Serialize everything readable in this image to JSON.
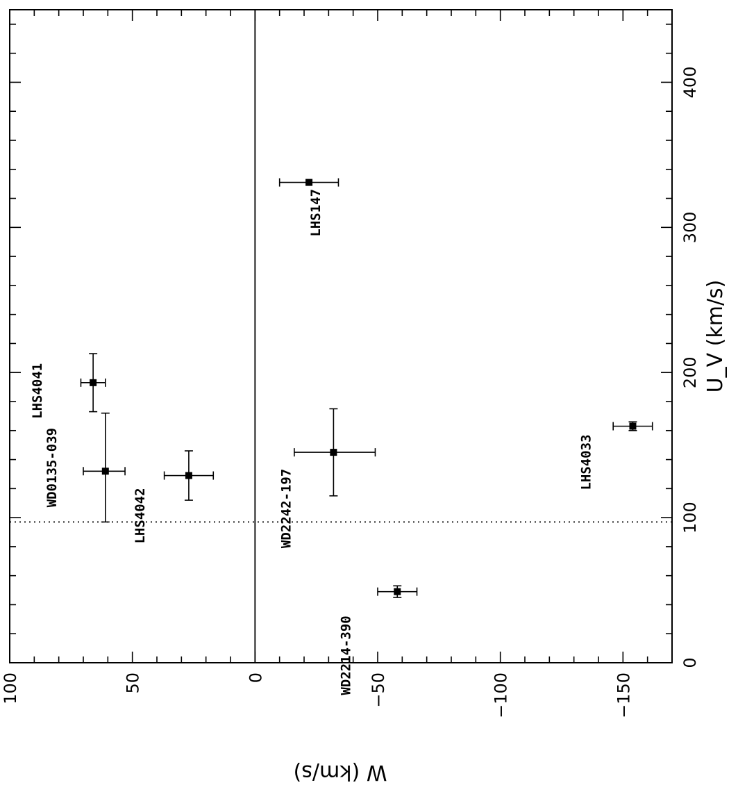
{
  "chart_data": {
    "type": "scatter",
    "xlabel": "W (km/s)",
    "ylabel": "U_V (km/s)",
    "x_axis_reversed": true,
    "xlim": [
      100,
      -170
    ],
    "ylim": [
      0,
      450
    ],
    "x_ticks": [
      100,
      50,
      0,
      -50,
      -100,
      -150
    ],
    "x_tick_labels": [
      "100",
      "50",
      "0",
      "-50",
      "-100",
      "-150"
    ],
    "y_ticks": [
      0,
      100,
      200,
      300,
      400
    ],
    "y_tick_labels": [
      "0",
      "100",
      "200",
      "300",
      "400"
    ],
    "grid": false,
    "reference_lines": [
      {
        "orientation": "vertical",
        "x": 0,
        "style": "solid"
      },
      {
        "orientation": "horizontal",
        "y": 97,
        "style": "dotted"
      }
    ],
    "points": [
      {
        "label": "LHS147",
        "x": -22,
        "y": 331,
        "x_err": [
          12,
          12
        ],
        "y_err": [
          0,
          0
        ]
      },
      {
        "label": "LHS4041",
        "x": 66,
        "y": 193,
        "x_err": [
          5,
          5
        ],
        "y_err": [
          20,
          20
        ]
      },
      {
        "label": "WD0135-039",
        "x": 61,
        "y": 132,
        "x_err": [
          9,
          8
        ],
        "y_err": [
          35,
          40
        ]
      },
      {
        "label": "LHS4042",
        "x": 27,
        "y": 129,
        "x_err": [
          10,
          10
        ],
        "y_err": [
          17,
          17
        ]
      },
      {
        "label": "WD2242-197",
        "x": -32,
        "y": 145,
        "x_err": [
          16,
          17
        ],
        "y_err": [
          30,
          30
        ]
      },
      {
        "label": "WD2214-390",
        "x": -58,
        "y": 49,
        "x_err": [
          8,
          8
        ],
        "y_err": [
          4,
          4
        ]
      },
      {
        "label": "LHS4033",
        "x": -154,
        "y": 163,
        "x_err": [
          8,
          8
        ],
        "y_err": [
          3,
          3
        ]
      }
    ]
  }
}
